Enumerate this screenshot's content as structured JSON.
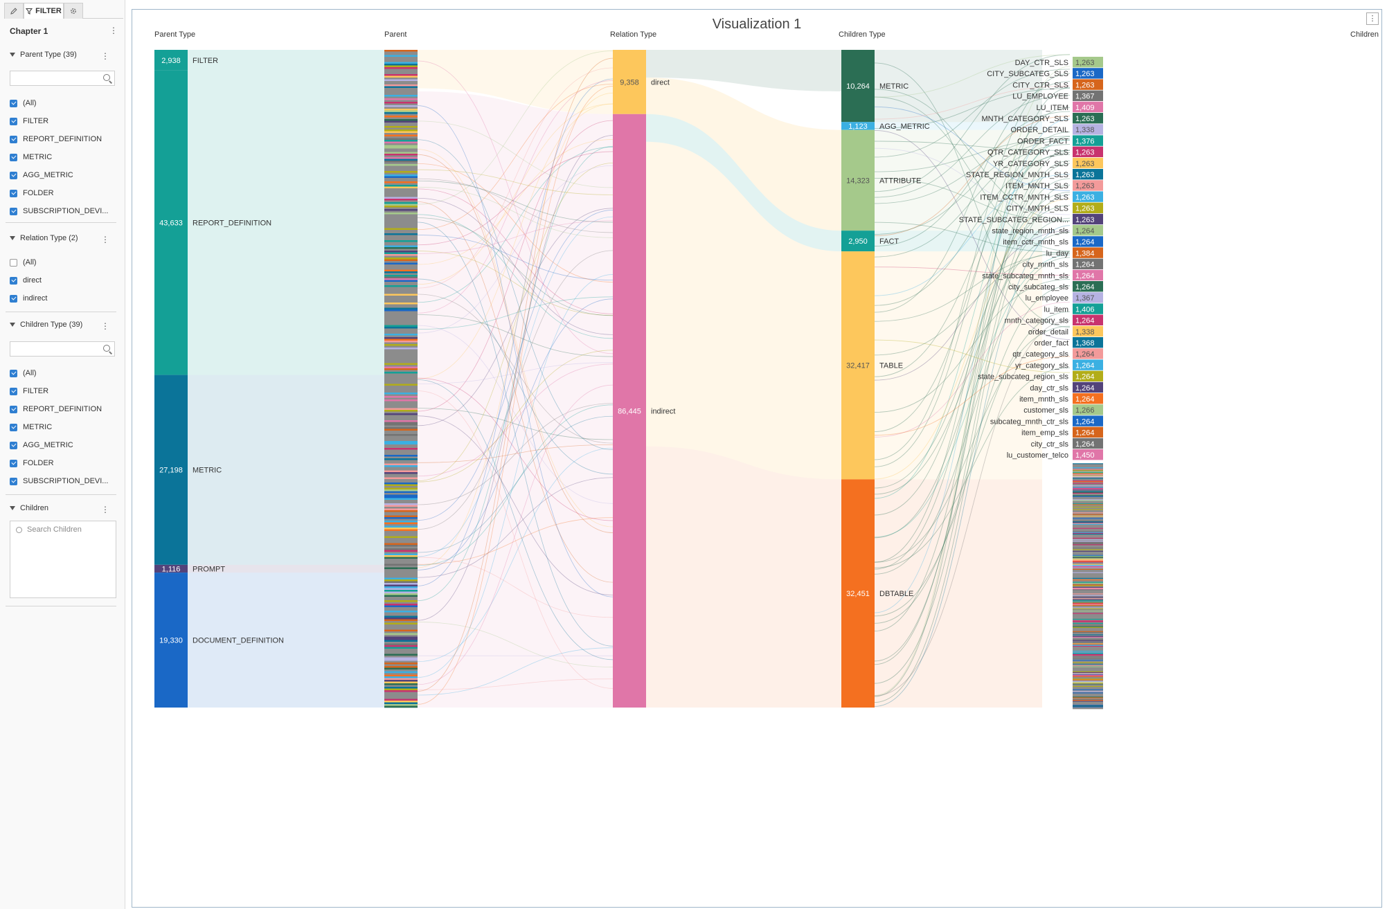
{
  "panel": {
    "tabs": {
      "filter_label": "FILTER"
    },
    "chapter_title": "Chapter 1",
    "sections": [
      {
        "title": "Parent Type (39)",
        "search": true,
        "options": [
          {
            "label": "(All)",
            "checked": true
          },
          {
            "label": "FILTER",
            "checked": true
          },
          {
            "label": "REPORT_DEFINITION",
            "checked": true
          },
          {
            "label": "METRIC",
            "checked": true
          },
          {
            "label": "AGG_METRIC",
            "checked": true
          },
          {
            "label": "FOLDER",
            "checked": true
          },
          {
            "label": "SUBSCRIPTION_DEVI...",
            "checked": true
          }
        ]
      },
      {
        "title": "Relation Type (2)",
        "search": false,
        "options": [
          {
            "label": "(All)",
            "checked": false
          },
          {
            "label": "direct",
            "checked": true
          },
          {
            "label": "indirect",
            "checked": true
          }
        ]
      },
      {
        "title": "Children Type (39)",
        "search": true,
        "options": [
          {
            "label": "(All)",
            "checked": true
          },
          {
            "label": "FILTER",
            "checked": true
          },
          {
            "label": "REPORT_DEFINITION",
            "checked": true
          },
          {
            "label": "METRIC",
            "checked": true
          },
          {
            "label": "AGG_METRIC",
            "checked": true
          },
          {
            "label": "FOLDER",
            "checked": true
          },
          {
            "label": "SUBSCRIPTION_DEVI...",
            "checked": true
          }
        ]
      }
    ],
    "children_section": {
      "title": "Children",
      "placeholder": "Search Children"
    }
  },
  "chart_data": {
    "type": "sankey",
    "title": "Visualization 1",
    "columns": [
      "Parent Type",
      "Parent",
      "Relation Type",
      "Children Type",
      "Children"
    ],
    "nodes": {
      "parent_type": [
        {
          "label": "FILTER",
          "value": 2938,
          "color": "#14a096"
        },
        {
          "label": "REPORT_DEFINITION",
          "value": 43633,
          "color": "#14a096"
        },
        {
          "label": "METRIC",
          "value": 27198,
          "color": "#0b7499"
        },
        {
          "label": "PROMPT",
          "value": 1116,
          "color": "#53437a"
        },
        {
          "label": "DOCUMENT_DEFINITION",
          "value": 19330,
          "color": "#1a68c6"
        }
      ],
      "relation_type": [
        {
          "label": "direct",
          "value": 9358,
          "color": "#fdc75c"
        },
        {
          "label": "indirect",
          "value": 86445,
          "color": "#e076a8"
        }
      ],
      "children_type": [
        {
          "label": "METRIC",
          "value": 10264,
          "color": "#2b6e54"
        },
        {
          "label": "AGG_METRIC",
          "value": 1123,
          "color": "#3bb0e2"
        },
        {
          "label": "ATTRIBUTE",
          "value": 14323,
          "color": "#a5c98b"
        },
        {
          "label": "FACT",
          "value": 2950,
          "color": "#14a096"
        },
        {
          "label": "TABLE",
          "value": 32417,
          "color": "#fdc75c"
        },
        {
          "label": "DBTABLE",
          "value": 32451,
          "color": "#f47020"
        }
      ],
      "children": [
        {
          "label": "DAY_CTR_SLS",
          "value": 1263,
          "color": "#a5c98b"
        },
        {
          "label": "CITY_SUBCATEG_SLS",
          "value": 1263,
          "color": "#1a68c6"
        },
        {
          "label": "CITY_CTR_SLS",
          "value": 1263,
          "color": "#d6651c"
        },
        {
          "label": "LU_EMPLOYEE",
          "value": 1367,
          "color": "#737373"
        },
        {
          "label": "LU_ITEM",
          "value": 1409,
          "color": "#e076a8"
        },
        {
          "label": "MNTH_CATEGORY_SLS",
          "value": 1263,
          "color": "#2b6e54"
        },
        {
          "label": "ORDER_DETAIL",
          "value": 1338,
          "color": "#b6b2e2"
        },
        {
          "label": "ORDER_FACT",
          "value": 1376,
          "color": "#14a096"
        },
        {
          "label": "QTR_CATEGORY_SLS",
          "value": 1263,
          "color": "#c8336e"
        },
        {
          "label": "YR_CATEGORY_SLS",
          "value": 1263,
          "color": "#fdc75c"
        },
        {
          "label": "STATE_REGION_MNTH_SLS",
          "value": 1263,
          "color": "#0b7499"
        },
        {
          "label": "ITEM_MNTH_SLS",
          "value": 1263,
          "color": "#f39a9a"
        },
        {
          "label": "ITEM_CCTR_MNTH_SLS",
          "value": 1263,
          "color": "#3bb0e2"
        },
        {
          "label": "CITY_MNTH_SLS",
          "value": 1263,
          "color": "#b2ad19"
        },
        {
          "label": "STATE_SUBCATEG_REGION...",
          "value": 1263,
          "color": "#53437a"
        },
        {
          "label": "state_region_mnth_sls",
          "value": 1264,
          "color": "#a5c98b"
        },
        {
          "label": "item_cctr_mnth_sls",
          "value": 1264,
          "color": "#1a68c6"
        },
        {
          "label": "lu_day",
          "value": 1384,
          "color": "#d6651c"
        },
        {
          "label": "city_mnth_sls",
          "value": 1264,
          "color": "#737373"
        },
        {
          "label": "state_subcateg_mnth_sls",
          "value": 1264,
          "color": "#e076a8"
        },
        {
          "label": "city_subcateg_sls",
          "value": 1264,
          "color": "#2b6e54"
        },
        {
          "label": "lu_employee",
          "value": 1367,
          "color": "#b6b2e2"
        },
        {
          "label": "lu_item",
          "value": 1406,
          "color": "#14a096"
        },
        {
          "label": "mnth_category_sls",
          "value": 1264,
          "color": "#c8336e"
        },
        {
          "label": "order_detail",
          "value": 1338,
          "color": "#fdc75c"
        },
        {
          "label": "order_fact",
          "value": 1368,
          "color": "#0b7499"
        },
        {
          "label": "qtr_category_sls",
          "value": 1264,
          "color": "#f39a9a"
        },
        {
          "label": "yr_category_sls",
          "value": 1264,
          "color": "#3bb0e2"
        },
        {
          "label": "state_subcateg_region_sls",
          "value": 1264,
          "color": "#b2ad19"
        },
        {
          "label": "day_ctr_sls",
          "value": 1264,
          "color": "#53437a"
        },
        {
          "label": "item_mnth_sls",
          "value": 1264,
          "color": "#f47020"
        },
        {
          "label": "customer_sls",
          "value": 1266,
          "color": "#a5c98b"
        },
        {
          "label": "subcateg_mnth_ctr_sls",
          "value": 1264,
          "color": "#1a68c6"
        },
        {
          "label": "item_emp_sls",
          "value": 1264,
          "color": "#d6651c"
        },
        {
          "label": "city_ctr_sls",
          "value": 1264,
          "color": "#737373"
        },
        {
          "label": "lu_customer_telco",
          "value": 1450,
          "color": "#e076a8"
        }
      ]
    },
    "flows": {
      "parent_type_to_relation": [
        {
          "source": "FILTER",
          "target": "direct",
          "color": "#14a096"
        },
        {
          "source": "REPORT_DEFINITION",
          "target": "indirect",
          "color": "#14a096"
        },
        {
          "source": "METRIC",
          "target": "indirect",
          "color": "#0b7499"
        },
        {
          "source": "PROMPT",
          "target": "indirect",
          "color": "#53437a"
        },
        {
          "source": "DOCUMENT_DEFINITION",
          "target": "indirect",
          "color": "#1a68c6"
        }
      ],
      "relation_to_children_type": [
        {
          "source": "direct",
          "target": "METRIC",
          "color": "#fdc75c"
        },
        {
          "source": "direct",
          "target": "ATTRIBUTE",
          "color": "#fdc75c"
        },
        {
          "source": "indirect",
          "target": "TABLE",
          "color": "#e076a8"
        },
        {
          "source": "indirect",
          "target": "DBTABLE",
          "color": "#e076a8"
        },
        {
          "source": "indirect",
          "target": "FACT",
          "color": "#e076a8"
        }
      ]
    },
    "legend": "none",
    "grid": false
  }
}
